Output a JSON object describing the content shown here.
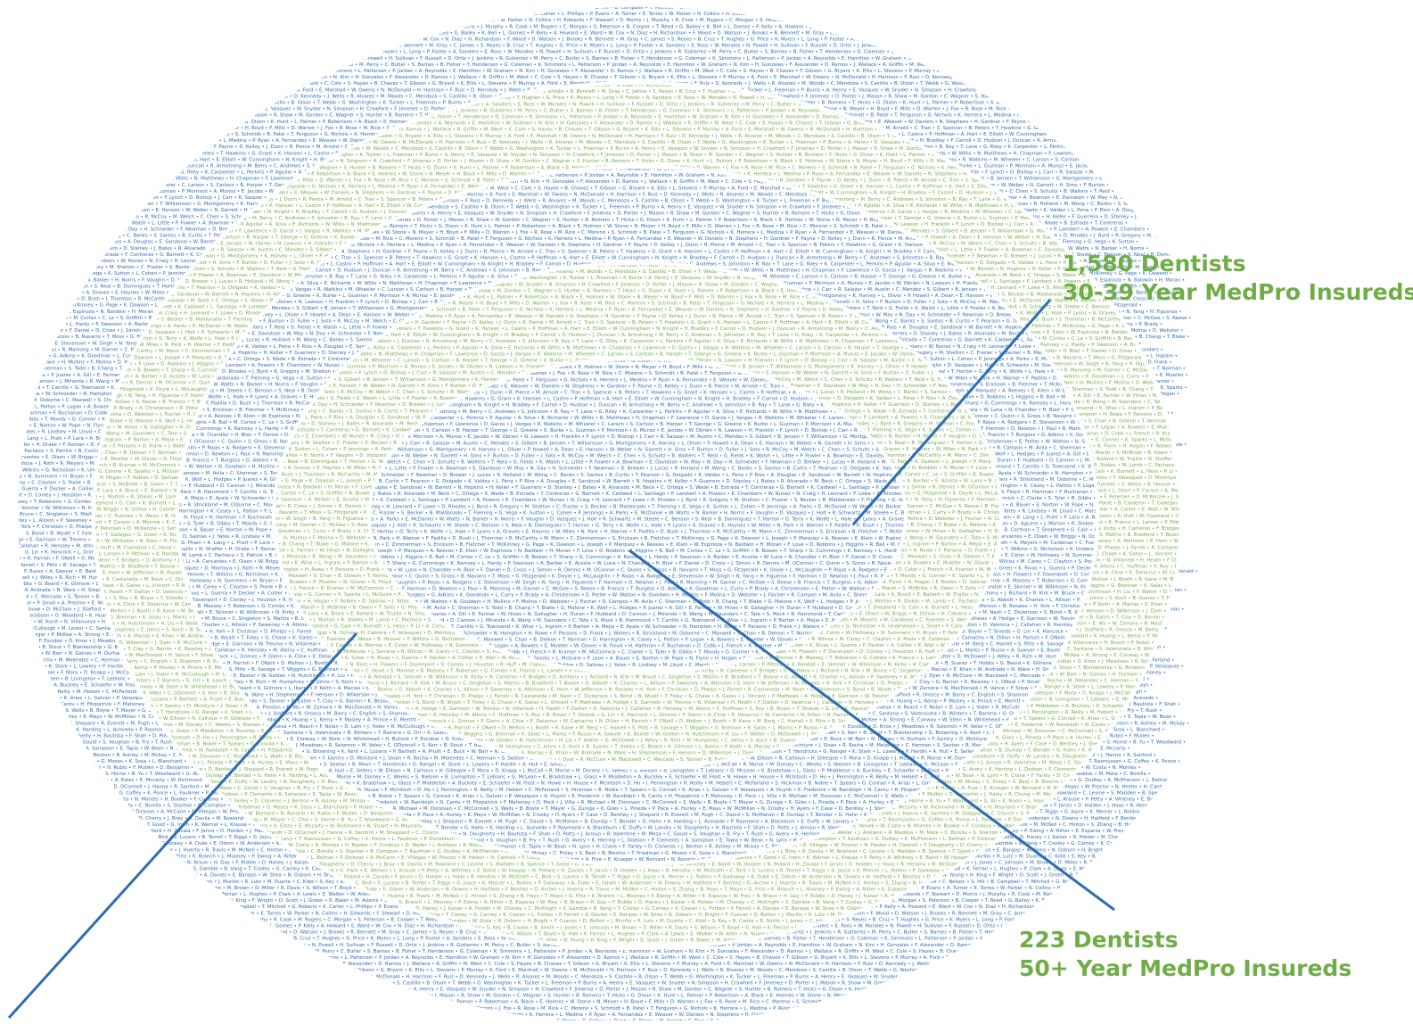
{
  "colors": {
    "blue": "#2e6db0",
    "green": "#70ad47",
    "line": "#2e6db0",
    "background": "#ffffff"
  },
  "rings": [
    {
      "ring": 1,
      "style": "name-text",
      "color": "blue"
    },
    {
      "ring": 2,
      "style": "name-text",
      "color": "green"
    },
    {
      "ring": 3,
      "style": "name-text",
      "color": "blue"
    },
    {
      "ring": 4,
      "style": "name-text",
      "color": "green"
    },
    {
      "ring": 5,
      "style": "name-text",
      "color": "blue"
    }
  ],
  "callouts": {
    "ring_30_39": {
      "count": "1,580 Dentists",
      "label": "30-39 Year MedPro Insureds"
    },
    "ring_50_plus": {
      "count": "223 Dentists",
      "label": "50+ Year MedPro Insureds"
    }
  },
  "name_samples": [
    "B. Smith",
    "J. Jones",
    "C. Johnson",
    "M. Brown",
    "D. Miller",
    "R. Davis",
    "S. Wilson",
    "T. Boyd",
    "G. Hall",
    "K. Ferrari",
    "L. Hughes",
    "P. Clark",
    "A. Lewis",
    "E. Walker",
    "W. Allen",
    "N. Young",
    "H. King",
    "F. Wright",
    "D. Scott",
    "J. Green",
    "R. Baker",
    "M. Adams",
    "C. Nelson",
    "S. Hill",
    "B. Campbell",
    "T. Mitchell",
    "G. Roberts",
    "K. Carter",
    "L. Phillips",
    "P. Evans",
    "A. Turner",
    "E. Torres",
    "W. Parker",
    "N. Collins",
    "H. Edwards",
    "F. Stewart",
    "D. Morris",
    "J. Murphy",
    "R. Cook",
    "M. Rogers",
    "C. Morgan",
    "S. Peterson",
    "B. Cooper",
    "T. Reed",
    "G. Bailey",
    "K. Bell",
    "L. Gomez",
    "P. Kelly",
    "A. Howard",
    "E. Ward",
    "W. Cox",
    "N. Diaz",
    "H. Richardson",
    "F. Wood",
    "D. Watson",
    "J. Brooks",
    "R. Bennett",
    "M. Gray",
    "C. James",
    "S. Reyes",
    "B. Cruz",
    "T. Hughes",
    "G. Price",
    "K. Myers",
    "L. Long",
    "P. Foster",
    "A. Sanders",
    "E. Ross",
    "W. Morales",
    "N. Powell",
    "H. Sullivan",
    "F. Russell",
    "D. Ortiz",
    "J. Jenkins",
    "R. Gutierrez",
    "M. Perry",
    "C. Butler",
    "S. Barnes",
    "B. Fisher",
    "T. Henderson",
    "G. Coleman",
    "K. Simmons",
    "L. Patterson",
    "P. Jordan",
    "A. Reynolds",
    "E. Hamilton",
    "W. Graham",
    "N. Kim",
    "H. Gonzales",
    "F. Alexander",
    "D. Ramos",
    "J. Wallace",
    "R. Griffin",
    "M. West",
    "C. Cole",
    "S. Hayes",
    "B. Chavez",
    "T. Gibson",
    "G. Bryant",
    "K. Ellis",
    "L. Stevens",
    "P. Murray",
    "A. Ford",
    "E. Marshall",
    "W. Owens",
    "N. McDonald",
    "H. Harrison",
    "F. Ruiz",
    "D. Kennedy",
    "J. Wells",
    "R. Alvarez",
    "M. Woods",
    "C. Mendoza",
    "S. Castillo",
    "B. Olson",
    "T. Webb",
    "G. Washington",
    "K. Tucker",
    "L. Freeman",
    "P. Burns",
    "A. Henry",
    "E. Vasquez",
    "W. Snyder",
    "N. Simpson",
    "H. Crawford",
    "F. Jimenez",
    "D. Porter",
    "J. Mason",
    "R. Shaw",
    "M. Gordon",
    "C. Wagner",
    "S. Hunter",
    "B. Romero",
    "T. Hicks",
    "G. Dixon",
    "K. Hunt",
    "L. Palmer",
    "P. Robertson",
    "A. Black",
    "E. Holmes",
    "W. Stone",
    "N. Meyer",
    "H. Boyd",
    "F. Mills",
    "D. Warren",
    "J. Fox",
    "R. Rose",
    "M. Rice",
    "C. Moreno",
    "S. Schmidt",
    "B. Patel",
    "T. Ferguson",
    "G. Nichols",
    "K. Herrera",
    "L. Medina",
    "P. Ryan",
    "A. Fernandez",
    "E. Weaver",
    "W. Daniels",
    "N. Stephens",
    "H. Gardner",
    "F. Payne",
    "D. Kelley",
    "J. Dunn",
    "R. Pierce",
    "M. Arnold",
    "C. Tran",
    "S. Spencer",
    "B. Peters",
    "T. Hawkins",
    "G. Grant",
    "K. Hansen",
    "L. Castro",
    "P. Hoffman",
    "A. Hart",
    "E. Elliott",
    "W. Cunningham",
    "N. Knight",
    "H. Bradley",
    "F. Carroll",
    "D. Hudson",
    "J. Duncan",
    "R. Armstrong",
    "M. Berry",
    "C. Andrews",
    "S. Johnston",
    "B. Ray",
    "T. Lane",
    "G. Riley",
    "K. Carpenter",
    "L. Perkins",
    "P. Aguilar",
    "A. Silva",
    "E. Richards",
    "W. Willis",
    "N. Matthews",
    "H. Chapman",
    "F. Lawrence",
    "D. Garza",
    "J. Vargas",
    "R. Watkins",
    "M. Wheeler",
    "C. Larson",
    "S. Carlson",
    "B. Harper",
    "T. George",
    "G. Greene",
    "K. Burke",
    "L. Guzman",
    "P. Morrison",
    "A. Munoz",
    "E. Jacobs",
    "W. Obrien",
    "N. Lawson",
    "H. Franklin",
    "F. Lynch",
    "D. Bishop",
    "J. Carr",
    "R. Salazar",
    "M. Austin",
    "C. Mendez",
    "S. Gilbert",
    "B. Jensen",
    "T. Williamson",
    "G. Montgomery",
    "K. Harvey",
    "L. Oliver",
    "P. Howell",
    "A. Dean",
    "E. Hanson",
    "W. Weber",
    "N. Garrett",
    "H. Sims",
    "F. Burton",
    "D. Fuller",
    "J. Soto",
    "R. McCoy",
    "M. Welch",
    "C. Chen",
    "S. Schultz",
    "B. Walters",
    "T. Reid",
    "G. Fields",
    "K. Walsh",
    "L. Little",
    "P. Fowler",
    "A. Bowman",
    "E. Davidson",
    "W. May",
    "N. Day",
    "H. Schneider",
    "F. Newman",
    "D. Brewer",
    "J. Lucas",
    "R. Holland",
    "M. Wong",
    "C. Banks",
    "S. Santos",
    "B. Curtis",
    "T. Pearson",
    "G. Delgado",
    "K. Valdez",
    "L. Pena",
    "P. Rios",
    "A. Douglas",
    "E. Sandoval",
    "W. Barrett",
    "N. Hopkins",
    "H. Keller",
    "F. Guerrero",
    "D. Stanley",
    "J. Bates",
    "R. Alvarado",
    "M. Beck",
    "C. Ortega",
    "S. Wade",
    "B. Estrada",
    "T. Contreras",
    "G. Barnett",
    "K. Caldwell",
    "L. Santiago",
    "P. Lambert",
    "A. Powers",
    "E. Chambers",
    "W. Nunez",
    "N. Craig",
    "H. Leonard",
    "F. Lowe",
    "D. Rhodes",
    "J. Byrd",
    "R. Gregory",
    "M. Shelton",
    "C. Frazier",
    "S. Becker",
    "B. Maldonado",
    "T. Fleming",
    "G. Vega",
    "K. Sutton",
    "L. Cohen",
    "P. Jennings",
    "A. Parks",
    "E. McDaniel",
    "W. Watts",
    "N. Barker",
    "H. Norris",
    "F. Vaughn",
    "D. Vazquez",
    "J. Holt",
    "R. Schwartz",
    "M. Steele",
    "C. Benson",
    "S. Neal",
    "B. Dominguez",
    "T. Horton",
    "G. Terry",
    "K. Wolfe",
    "L. Hale",
    "P. Lyons",
    "A. Graves",
    "E. Haynes",
    "W. Miles",
    "N. Park",
    "H. Warner",
    "F. Padilla",
    "D. Bush",
    "J. Thornton",
    "R. McCarthy",
    "M. Mann",
    "C. Zimmerman",
    "S. Erickson",
    "B. Fletcher",
    "T. McKinney",
    "G. Page",
    "K. Dawson",
    "L. Joseph",
    "P. Marquez",
    "A. Reeves",
    "E. Klein",
    "W. Espinoza",
    "N. Baldwin",
    "H. Moran",
    "F. Love",
    "D. Robbins",
    "J. Higgins",
    "R. Ball",
    "M. Cortez",
    "C. Le",
    "S. Griffith",
    "B. Bowen",
    "T. Sharp",
    "G. Cummings",
    "K. Ramsey",
    "L. Hardy",
    "P. Swanson",
    "A. Barber",
    "E. Acosta",
    "W. Luna",
    "N. Chandler",
    "H. Blair",
    "F. Daniel",
    "D. Cross",
    "J. Simon",
    "R. Dennis",
    "M. OConnor",
    "C. Quinn",
    "S. Gross",
    "B. Navarro",
    "T. Moss",
    "G. Fitzgerald",
    "K. Doyle",
    "L. McLaughlin",
    "P. Rojas",
    "A. Rodgers",
    "E. Stevenson",
    "W. Singh",
    "N. Yang",
    "H. Figueroa",
    "F. Harmon",
    "D. Newton",
    "J. Paul",
    "R. Manning",
    "M. Garner",
    "C. McGee",
    "S. Reese",
    "B. Francis",
    "T. Burgess",
    "G. Adkins",
    "K. Goodman",
    "L. Curry",
    "P. Brady",
    "A. Christensen",
    "E. Potter",
    "W. Walton",
    "N. Goodwin",
    "H. Mullins",
    "F. Molina",
    "D. Webster",
    "J. Fischer",
    "R. Campos",
    "M. Avila",
    "C. Sherman",
    "S. Todd",
    "B. Chang",
    "T. Blake",
    "G. Malone",
    "K. Wolf",
    "L. Hodges",
    "P. Juarez",
    "A. Gill",
    "E. Farmer",
    "W. Hines",
    "N. Gallagher",
    "H. Duran",
    "F. Hubbard",
    "D. Cannon",
    "J. Miranda",
    "R. Wang",
    "M. Saunders",
    "C. Tate",
    "S. Mack",
    "B. Hammond",
    "T. Carrillo",
    "G. Townsend",
    "K. Wise",
    "L. Ingram",
    "P. Barton",
    "A. Mejia",
    "E. Ayala",
    "W. Schroeder",
    "N. Hampton",
    "H. Rowe",
    "F. Parsons",
    "D. Frank",
    "J. Waters",
    "R. Strickland",
    "M. Osborne",
    "C. Maxwell",
    "S. Chan",
    "B. Deleon",
    "T. Norman",
    "G. Harrington",
    "K. Casey",
    "L. Patton",
    "P. Logan",
    "A. Bowers",
    "E. Mueller",
    "W. Glover",
    "N. Floyd",
    "H. Hartman",
    "F. Buchanan",
    "D. Cobb",
    "J. French",
    "R. Kramer",
    "M. McCormick",
    "C. Clarke",
    "S. Tyler",
    "B. Gibbs",
    "T. Moody",
    "G. Conner",
    "K. Sparks",
    "L. McGuire",
    "P. Leon",
    "A. Bauer",
    "E. Norton",
    "W. Pope",
    "N. Flynn",
    "H. Hogan",
    "F. Robles",
    "D. Salinas",
    "J. Yates",
    "R. Lindsey",
    "M. Lloyd",
    "C. Marsh",
    "S. McBride",
    "B. Owen",
    "T. Solis",
    "G. Pham",
    "K. Lang",
    "L. Pratt",
    "P. Lara",
    "A. Brock",
    "E. Ballard",
    "W. Trujillo",
    "N. Shaffer",
    "H. Drake",
    "F. Roman",
    "D. Aguirre",
    "J. Morton",
    "R. Stokes",
    "M. Lamb",
    "C. Pacheco",
    "S. Patrick",
    "B. Cochran",
    "T. Shepherd",
    "G. Cain",
    "K. Burnett",
    "L. Hess",
    "P. Li",
    "A. Cervantes",
    "E. Olsen",
    "W. Briggs",
    "N. Ochoa",
    "H. Cabrera",
    "F. Velasquez",
    "D. Montoya",
    "J. Roth",
    "R. Meyers",
    "M. Cardenas",
    "C. Fuentes",
    "S. Weiss",
    "B. Hoover",
    "T. Wilkins",
    "G. Nicholson",
    "K. Underwood",
    "L. Short",
    "P. Carson",
    "A. Morrow",
    "E. Colon",
    "W. Holloway",
    "N. Summers",
    "H. Bryan",
    "F. Petersen",
    "D. McKenzie",
    "J. Serrano",
    "R. Wilcox",
    "M. Carey",
    "C. Clayton",
    "S. Poole",
    "B. Calderon",
    "T. Gallegos",
    "G. Greer",
    "K. Rivas",
    "L. Guerra",
    "P. Decker",
    "A. Collier",
    "E. Wall",
    "W. Whitaker",
    "N. Bass",
    "H. Flowers",
    "F. Davenport",
    "D. Conley",
    "J. Houston",
    "R. Huff",
    "M. Copeland",
    "C. Hood",
    "S. Monroe",
    "B. Massey",
    "T. Roberson",
    "G. Combs",
    "K. Franco",
    "L. Larsen",
    "P. Pittman",
    "A. Randall",
    "E. Skinner",
    "W. Wilkinson",
    "N. Kirby",
    "H. Cameron",
    "F. Bridges",
    "D. Anthony",
    "J. Richard",
    "R. Kirk",
    "M. Bruce",
    "C. Singleton",
    "S. Mathis",
    "B. Bradford",
    "T. Boone",
    "G. Abbott",
    "K. Charles",
    "L. Allison",
    "P. Sweeney",
    "A. Atkinson",
    "E. Horn",
    "W. Jefferson",
    "N. Rosales",
    "H. York",
    "F. Christian",
    "D. Phelps",
    "J. Farrell",
    "R. Castaneda",
    "M. Nash",
    "C. Dickerson",
    "S. Bond",
    "B. Wyatt",
    "T. Foley",
    "G. Chase",
    "K. Gates",
    "L. Vincent",
    "P. Mathews",
    "A. Hodge",
    "E. Garrison",
    "W. Trevino",
    "N. Villarreal",
    "H. Heath",
    "F. Dalton",
    "D. Valencia",
    "J. Callahan",
    "R. Hensley",
    "M. Atkins",
    "C. Huffman",
    "S. Roy",
    "B. Boyer",
    "T. Shields",
    "G. Lin",
    "K. Hancock",
    "L. Grimes",
    "P. Glenn",
    "A. Cline",
    "E. Delacruz",
    "W. Camacho",
    "N. Dillon",
    "H. Parrish",
    "F. ONeill",
    "D. Melton",
    "J. Booth",
    "R. Kane",
    "M. Berg",
    "C. Harrell",
    "S. Pitts",
    "B. Savage",
    "T. Wiggins",
    "G. Brennan",
    "K. Salas",
    "L. Marks",
    "P. Russo",
    "A. Sawyer",
    "E. Baxter",
    "W. Golden",
    "N. Hutchinson",
    "H. Liu",
    "F. Walter",
    "D. McDowell",
    "J. Wiley",
    "R. Rich",
    "M. Humphrey",
    "C. Johns",
    "S. Koch",
    "B. Suarez",
    "T. Hobbs",
    "G. Beard",
    "K. Gilmore",
    "L. Ibarra",
    "P. Keith",
    "A. Macias",
    "E. Khan",
    "W. Andrade",
    "N. Ware",
    "H. Stephenson",
    "F. Henson",
    "D. Wilkerson",
    "J. Dyer",
    "R. McClure",
    "M. Blackwell",
    "C. Mercado",
    "S. Tanner",
    "B. Eaton",
    "T. Clay",
    "G. Barron",
    "K. Beasley",
    "L. ONeal",
    "P. Small",
    "A. Preston",
    "E. Wu",
    "W. Zamora",
    "N. MacDonald",
    "H. Vance",
    "F. Snow",
    "D. McClain",
    "J. Stafford",
    "R. Orozco",
    "M. Barry",
    "C. English",
    "S. Shannon",
    "B. Kline",
    "T. Jacobson",
    "G. Woodard",
    "K. Huang",
    "L. Kemp",
    "P. Mosley",
    "A. Prince",
    "E. Merritt",
    "W. Hurst",
    "N. Villanueva",
    "H. Roach",
    "F. Nolan",
    "D. Lam",
    "J. Yoder",
    "R. McCullough",
    "M. Lester",
    "C. Santana",
    "S. Valenzuela",
    "B. Winters",
    "T. Barrera",
    "G. Orr",
    "K. Leach",
    "L. Berger",
    "P. McKee",
    "A. Strong",
    "E. Conway",
    "W. Stein",
    "N. Whitehead",
    "H. Bullock",
    "F. Escobar",
    "D. Knox",
    "J. Meadows",
    "R. Solomon",
    "M. Velez",
    "C. ODonnell",
    "S. Kerr",
    "B. Stout",
    "T. Blankenship",
    "G. Browning",
    "K. Kent",
    "L. Lozano",
    "P. Bartlett",
    "A. Pruitt",
    "E. Buck",
    "W. Barr",
    "N. Gaines",
    "H. Durham",
    "F. Gentry",
    "D. McIntyre",
    "J. Sloan",
    "R. Rocha",
    "M. Melendez",
    "C. Herman",
    "S. Sexton",
    "B. Moon",
    "T. Hendricks",
    "G. Rangel",
    "K. Stark",
    "L. Lowery",
    "P. Hardin",
    "A. Hull",
    "E. Sellers",
    "W. Ellison",
    "N. Calhoun",
    "H. Gillespie",
    "F. Mora",
    "D. Knapp",
    "J. McCall",
    "R. Morse",
    "M. Dorsey",
    "C. Weeks",
    "S. Nielsen",
    "B. Livingston",
    "T. Leblanc",
    "G. McLean",
    "K. Bradshaw",
    "L. Glass",
    "P. Middleton",
    "A. Buckley",
    "E. Schaefer",
    "W. Frost",
    "N. Howe",
    "H. House",
    "F. McIntosh",
    "D. Ho",
    "J. Pennington",
    "R. Reilly",
    "M. Hebert",
    "C. McFarland",
    "S. Hickman",
    "B. Noble",
    "T. Spears",
    "G. Conrad",
    "K. Arias",
    "L. Galvan",
    "P. Velazquez",
    "A. Huynh",
    "E. Frederick",
    "W. Randolph",
    "N. Cantu",
    "H. Fitzpatrick",
    "F. Mahoney",
    "D. Peck",
    "J. Villa",
    "R. Michael",
    "M. Donovan",
    "C. McConnell",
    "S. Walls",
    "B. Boyle",
    "T. Mayer",
    "G. Zuniga",
    "K. Giles",
    "L. Pineda",
    "P. Pace",
    "A. Hurley",
    "E. Mays",
    "W. McMillan",
    "N. Crosby",
    "H. Ayers",
    "F. Case",
    "D. Bentley",
    "J. Shepard",
    "R. Everett",
    "M. Pugh",
    "C. David",
    "S. McMahon",
    "B. Dunlap",
    "T. Bender",
    "G. Hahn",
    "K. Harding",
    "L. Acevedo",
    "P. Raymond",
    "A. Blackburn",
    "E. Duffy",
    "W. Landry",
    "N. Dougherty",
    "H. Bautista",
    "F. Shah",
    "D. Potts",
    "J. Arroyo",
    "R. Valentine",
    "M. Meza",
    "C. Gould",
    "S. Vaughan",
    "B. Fry",
    "T. Rush",
    "G. Avery",
    "K. Herring",
    "L. Dodson",
    "P. Clements",
    "A. Sampson",
    "E. Tapia",
    "W. Bean",
    "N. Lynn",
    "H. Crane",
    "F. Farley",
    "D. Cisneros",
    "J. Benton",
    "R. Ashley",
    "M. Mckay",
    "C. Finley",
    "S. Best",
    "B. Blevins",
    "T. Friedman",
    "G. Moses",
    "K. Sosa",
    "L. Blanchard",
    "P. Huber",
    "A. Frye",
    "E. Krueger",
    "W. Bernard",
    "N. Rosario",
    "H. Rubio",
    "F. Mullen",
    "D. Benjamin",
    "J. Haley",
    "R. Chung",
    "M. Moyer",
    "C. Choi",
    "S. Horne",
    "B. Yu",
    "T. Woodward",
    "G. Ali",
    "K. Nixon",
    "L. Hayden",
    "P. Rivers",
    "A. Estes",
    "E. Mccarty",
    "W. Richmond",
    "N. Stuart",
    "H. Maynard",
    "F. Brandt",
    "D. OConnell",
    "J. Hanna",
    "R. Sanford",
    "M. Sheppard",
    "C. Church",
    "S. Burch",
    "B. Levy",
    "T. Rasmussen",
    "G. Coffey",
    "K. Ponce",
    "L. Faulkner",
    "P. Donaldson",
    "A. Schmitt",
    "E. Novak",
    "W. Costa",
    "N. Montes",
    "H. Booker",
    "F. Cordova",
    "D. Waller",
    "J. Arellano",
    "R. Maddox",
    "M. Mata",
    "C. Bonilla",
    "S. Stanton",
    "B. Compton",
    "T. Kaufman",
    "G. Dudley",
    "K. McPherson",
    "L. Beltran",
    "P. Dickson",
    "A. McCann",
    "E. Villegas",
    "W. Proctor",
    "N. Hester",
    "H. Cantrell",
    "F. Daugherty",
    "D. Cherry",
    "J. Bray",
    "R. Davila",
    "M. Rowland",
    "C. Levine",
    "S. Madden",
    "B. Spence",
    "T. Good",
    "G. Irwin",
    "K. Werner",
    "L. Krause",
    "P. Petty",
    "A. Whitney",
    "E. Baird",
    "W. Hooper",
    "N. Pollard",
    "H. Zavala",
    "F. Jarvis",
    "D. Holden",
    "J. Haas",
    "R. Hendrix",
    "M. McGrath",
    "C. Bird",
    "S. Lucero",
    "B. Terrell",
    "T. Riggs",
    "G. Joyce",
    "K. Mercer",
    "L. Rollins",
    "P. Galloway",
    "A. Duke",
    "E. Odom",
    "W. Andersen",
    "N. Downs",
    "H. Hatfield",
    "F. Benitez",
    "D. Archer",
    "J. Huerta",
    "R. Travis",
    "M. McNeil",
    "C. Hinton",
    "S. Zhang",
    "B. Hays",
    "T. Mayo",
    "G. Fritz",
    "K. Branch",
    "L. Mooney",
    "P. Ewing",
    "A. Ritter",
    "E. Esparza",
    "W. Frey",
    "N. Braun",
    "H. Gay",
    "F. Riddle",
    "D. Haney",
    "J. Kaiser",
    "R. Holder",
    "M. Chaney",
    "C. McKnight",
    "S. Gamble",
    "B. Vang",
    "T. Cooley",
    "G. Carney",
    "K. Cowan",
    "L. Forbes",
    "P. Ferrell",
    "A. Davies",
    "E. Barajas",
    "W. Shea",
    "N. Osborn",
    "H. Bright",
    "F. Cuevas",
    "D. Bolton",
    "J. Murillo",
    "R. Lutz",
    "M. Duarte",
    "C. Kidd",
    "S. Key",
    "B. Cooke"
  ]
}
